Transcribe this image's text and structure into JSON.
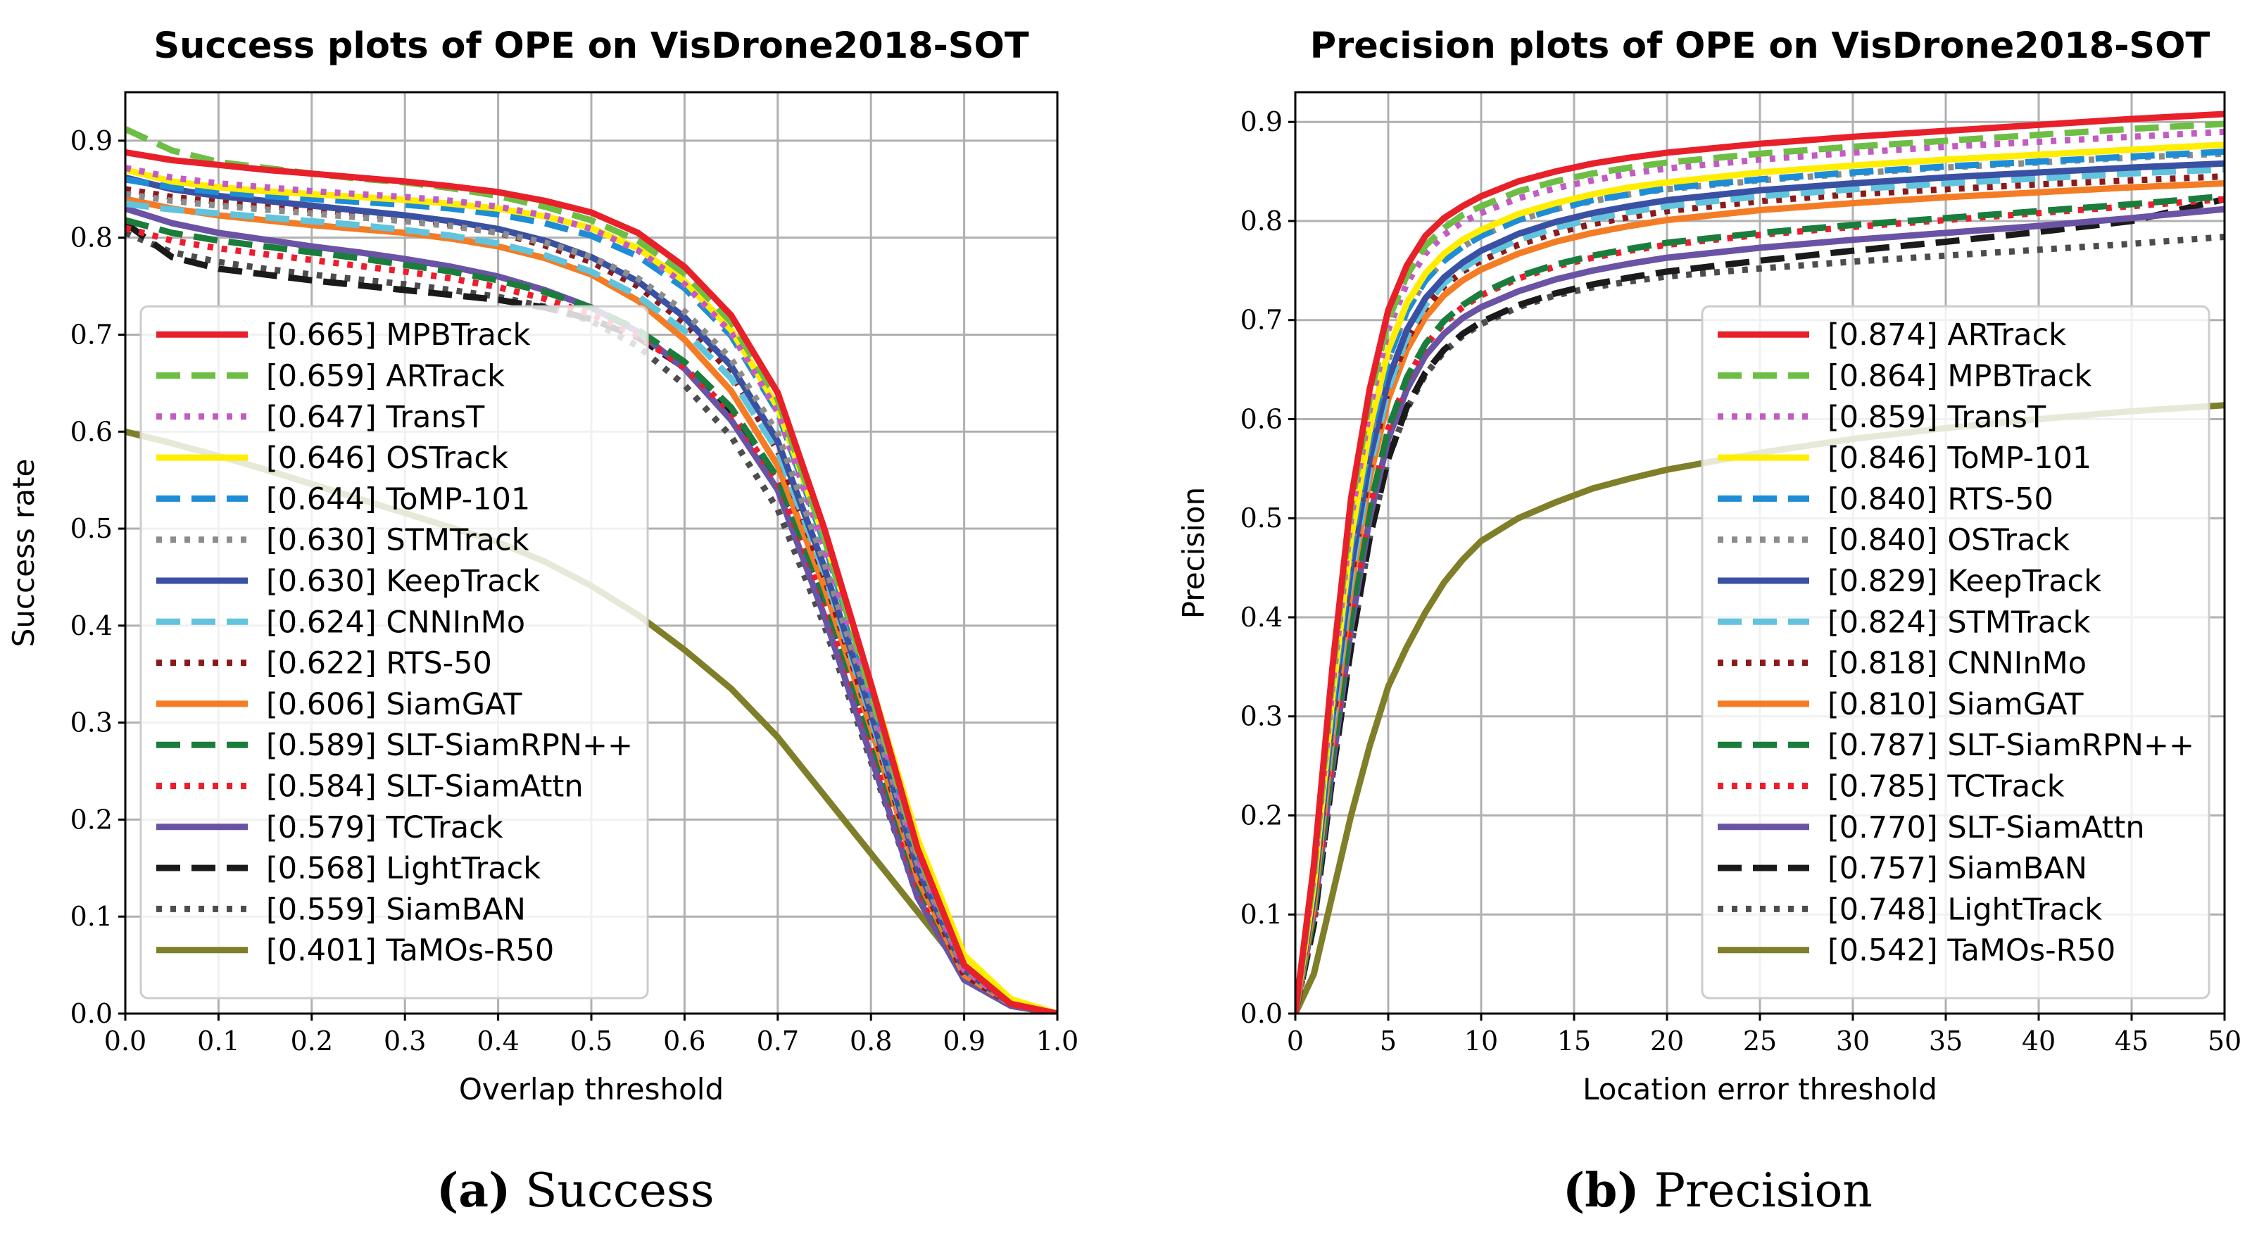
{
  "captions": [
    {
      "tag": "(a)",
      "text": "Success"
    },
    {
      "tag": "(b)",
      "text": "Precision"
    }
  ],
  "chart_data": [
    {
      "type": "line",
      "title": "Success plots of OPE on VisDrone2018-SOT",
      "xlabel": "Overlap threshold",
      "ylabel": "Success rate",
      "xlim": [
        0,
        1
      ],
      "ylim": [
        0,
        0.95
      ],
      "xticks": [
        "0.0",
        "0.1",
        "0.2",
        "0.3",
        "0.4",
        "0.5",
        "0.6",
        "0.7",
        "0.8",
        "0.9",
        "1.0"
      ],
      "yticks": [
        "0.0",
        "0.1",
        "0.2",
        "0.3",
        "0.4",
        "0.5",
        "0.6",
        "0.7",
        "0.8",
        "0.9"
      ],
      "grid": true,
      "legend_position": "bottom-left",
      "x": [
        0,
        0.05,
        0.1,
        0.15,
        0.2,
        0.25,
        0.3,
        0.35,
        0.4,
        0.45,
        0.5,
        0.55,
        0.6,
        0.65,
        0.7,
        0.75,
        0.8,
        0.85,
        0.9,
        0.95,
        1.0
      ],
      "series": [
        {
          "name": "[0.665] MPBTrack",
          "color": "#e8202a",
          "dash": "solid",
          "values": [
            0.888,
            0.88,
            0.875,
            0.87,
            0.866,
            0.862,
            0.858,
            0.853,
            0.847,
            0.838,
            0.826,
            0.805,
            0.77,
            0.72,
            0.64,
            0.5,
            0.34,
            0.17,
            0.05,
            0.01,
            0
          ]
        },
        {
          "name": "[0.659] ARTrack",
          "color": "#6dbe45",
          "dash": "dash",
          "values": [
            0.912,
            0.89,
            0.878,
            0.872,
            0.866,
            0.861,
            0.857,
            0.851,
            0.843,
            0.832,
            0.818,
            0.797,
            0.763,
            0.713,
            0.633,
            0.49,
            0.33,
            0.165,
            0.05,
            0.01,
            0
          ]
        },
        {
          "name": "[0.647] TransT",
          "color": "#c25cc2",
          "dash": "dot",
          "values": [
            0.872,
            0.862,
            0.856,
            0.852,
            0.848,
            0.845,
            0.842,
            0.838,
            0.832,
            0.823,
            0.809,
            0.787,
            0.752,
            0.702,
            0.62,
            0.48,
            0.325,
            0.16,
            0.045,
            0.01,
            0
          ]
        },
        {
          "name": "[0.646] OSTrack",
          "color": "#ffee00",
          "dash": "solid",
          "values": [
            0.87,
            0.858,
            0.852,
            0.848,
            0.845,
            0.842,
            0.839,
            0.835,
            0.83,
            0.822,
            0.81,
            0.789,
            0.755,
            0.705,
            0.625,
            0.49,
            0.34,
            0.18,
            0.06,
            0.015,
            0
          ]
        },
        {
          "name": "[0.644] ToMP-101",
          "color": "#1f8dd6",
          "dash": "dash",
          "values": [
            0.86,
            0.852,
            0.847,
            0.843,
            0.84,
            0.837,
            0.834,
            0.83,
            0.824,
            0.815,
            0.802,
            0.781,
            0.748,
            0.699,
            0.62,
            0.485,
            0.33,
            0.165,
            0.05,
            0.01,
            0
          ]
        },
        {
          "name": "[0.630] STMTrack",
          "color": "#8c8c8c",
          "dash": "dot",
          "values": [
            0.845,
            0.838,
            0.833,
            0.829,
            0.825,
            0.821,
            0.817,
            0.812,
            0.805,
            0.795,
            0.78,
            0.758,
            0.724,
            0.675,
            0.598,
            0.465,
            0.315,
            0.155,
            0.045,
            0.01,
            0
          ]
        },
        {
          "name": "[0.630] KeepTrack",
          "color": "#3a51a3",
          "dash": "solid",
          "values": [
            0.862,
            0.85,
            0.843,
            0.838,
            0.833,
            0.828,
            0.823,
            0.817,
            0.809,
            0.797,
            0.78,
            0.755,
            0.718,
            0.668,
            0.59,
            0.46,
            0.31,
            0.15,
            0.045,
            0.01,
            0
          ]
        },
        {
          "name": "[0.624] CNNInMo",
          "color": "#61c3dc",
          "dash": "dash",
          "values": [
            0.835,
            0.829,
            0.825,
            0.821,
            0.817,
            0.813,
            0.808,
            0.802,
            0.794,
            0.782,
            0.765,
            0.74,
            0.704,
            0.655,
            0.58,
            0.455,
            0.305,
            0.15,
            0.045,
            0.01,
            0
          ]
        },
        {
          "name": "[0.622] RTS-50",
          "color": "#8b1a1a",
          "dash": "dot",
          "values": [
            0.85,
            0.842,
            0.837,
            0.833,
            0.829,
            0.825,
            0.82,
            0.814,
            0.805,
            0.792,
            0.775,
            0.75,
            0.712,
            0.66,
            0.58,
            0.45,
            0.3,
            0.145,
            0.04,
            0.01,
            0
          ]
        },
        {
          "name": "[0.606] SiamGAT",
          "color": "#f47c25",
          "dash": "solid",
          "values": [
            0.84,
            0.83,
            0.823,
            0.818,
            0.813,
            0.809,
            0.805,
            0.799,
            0.791,
            0.779,
            0.762,
            0.735,
            0.695,
            0.642,
            0.565,
            0.44,
            0.295,
            0.14,
            0.04,
            0.01,
            0
          ]
        },
        {
          "name": "[0.589] SLT-SiamRPN++",
          "color": "#1a7d3c",
          "dash": "dash",
          "values": [
            0.818,
            0.805,
            0.797,
            0.791,
            0.785,
            0.779,
            0.772,
            0.765,
            0.756,
            0.744,
            0.728,
            0.705,
            0.672,
            0.625,
            0.552,
            0.43,
            0.285,
            0.135,
            0.04,
            0.01,
            0
          ]
        },
        {
          "name": "[0.584] SLT-SiamAttn",
          "color": "#ee1c2e",
          "dash": "dot",
          "values": [
            0.81,
            0.797,
            0.789,
            0.783,
            0.777,
            0.771,
            0.765,
            0.758,
            0.749,
            0.737,
            0.721,
            0.699,
            0.666,
            0.62,
            0.548,
            0.425,
            0.28,
            0.13,
            0.04,
            0.01,
            0
          ]
        },
        {
          "name": "[0.579] TCTrack",
          "color": "#6a53a4",
          "dash": "solid",
          "values": [
            0.83,
            0.815,
            0.805,
            0.798,
            0.791,
            0.785,
            0.778,
            0.77,
            0.76,
            0.746,
            0.728,
            0.703,
            0.665,
            0.612,
            0.54,
            0.41,
            0.265,
            0.12,
            0.035,
            0.008,
            0
          ]
        },
        {
          "name": "[0.568] LightTrack",
          "color": "#1a1a1a",
          "dash": "dash",
          "values": [
            0.815,
            0.78,
            0.768,
            0.762,
            0.756,
            0.751,
            0.746,
            0.741,
            0.736,
            0.728,
            0.716,
            0.697,
            0.666,
            0.62,
            0.548,
            0.425,
            0.28,
            0.13,
            0.04,
            0.01,
            0
          ]
        },
        {
          "name": "[0.559] SiamBAN",
          "color": "#4d4d4d",
          "dash": "dot",
          "values": [
            0.805,
            0.785,
            0.775,
            0.768,
            0.762,
            0.757,
            0.752,
            0.746,
            0.739,
            0.729,
            0.714,
            0.688,
            0.648,
            0.595,
            0.52,
            0.4,
            0.26,
            0.12,
            0.035,
            0.008,
            0
          ]
        },
        {
          "name": "[0.401] TaMOs-R50",
          "color": "#7f7f2a",
          "dash": "solid",
          "values": [
            0.6,
            0.588,
            0.575,
            0.561,
            0.546,
            0.531,
            0.516,
            0.501,
            0.486,
            0.466,
            0.441,
            0.411,
            0.375,
            0.335,
            0.285,
            0.225,
            0.165,
            0.105,
            0.045,
            0.01,
            0
          ]
        }
      ]
    },
    {
      "type": "line",
      "title": "Precision plots of OPE on VisDrone2018-SOT",
      "xlabel": "Location error threshold",
      "ylabel": "Precision",
      "xlim": [
        0,
        50
      ],
      "ylim": [
        0,
        0.93
      ],
      "xticks": [
        "0",
        "5",
        "10",
        "15",
        "20",
        "25",
        "30",
        "35",
        "40",
        "45",
        "50"
      ],
      "yticks": [
        "0.0",
        "0.1",
        "0.2",
        "0.3",
        "0.4",
        "0.5",
        "0.6",
        "0.7",
        "0.8",
        "0.9"
      ],
      "grid": true,
      "legend_position": "bottom-right",
      "x": [
        0,
        1,
        2,
        3,
        4,
        5,
        6,
        7,
        8,
        9,
        10,
        12,
        14,
        16,
        18,
        20,
        25,
        30,
        35,
        40,
        45,
        50
      ],
      "series": [
        {
          "name": "[0.874] ARTrack",
          "color": "#e8202a",
          "dash": "solid",
          "values": [
            0,
            0.15,
            0.35,
            0.52,
            0.63,
            0.71,
            0.755,
            0.785,
            0.803,
            0.815,
            0.825,
            0.84,
            0.85,
            0.858,
            0.864,
            0.869,
            0.878,
            0.885,
            0.891,
            0.897,
            0.903,
            0.908
          ]
        },
        {
          "name": "[0.864] MPBTrack",
          "color": "#6dbe45",
          "dash": "dash",
          "values": [
            0,
            0.14,
            0.34,
            0.51,
            0.62,
            0.7,
            0.745,
            0.775,
            0.793,
            0.806,
            0.815,
            0.83,
            0.84,
            0.848,
            0.854,
            0.859,
            0.868,
            0.875,
            0.881,
            0.887,
            0.893,
            0.898
          ]
        },
        {
          "name": "[0.859] TransT",
          "color": "#c25cc2",
          "dash": "dot",
          "values": [
            0,
            0.14,
            0.33,
            0.5,
            0.61,
            0.69,
            0.737,
            0.767,
            0.786,
            0.799,
            0.808,
            0.823,
            0.833,
            0.841,
            0.848,
            0.853,
            0.862,
            0.869,
            0.875,
            0.88,
            0.885,
            0.89
          ]
        },
        {
          "name": "[0.846] ToMP-101",
          "color": "#ffee00",
          "dash": "solid",
          "values": [
            0,
            0.13,
            0.32,
            0.48,
            0.59,
            0.67,
            0.717,
            0.747,
            0.767,
            0.781,
            0.791,
            0.807,
            0.818,
            0.827,
            0.834,
            0.839,
            0.849,
            0.856,
            0.862,
            0.867,
            0.872,
            0.877
          ]
        },
        {
          "name": "[0.840] RTS-50",
          "color": "#1f8dd6",
          "dash": "dash",
          "values": [
            0,
            0.13,
            0.31,
            0.47,
            0.58,
            0.66,
            0.709,
            0.74,
            0.76,
            0.774,
            0.785,
            0.801,
            0.812,
            0.821,
            0.827,
            0.833,
            0.842,
            0.849,
            0.855,
            0.86,
            0.865,
            0.87
          ]
        },
        {
          "name": "[0.840] OSTrack",
          "color": "#8c8c8c",
          "dash": "dot",
          "values": [
            0,
            0.13,
            0.31,
            0.47,
            0.58,
            0.66,
            0.709,
            0.74,
            0.76,
            0.774,
            0.785,
            0.801,
            0.812,
            0.82,
            0.827,
            0.832,
            0.841,
            0.848,
            0.854,
            0.859,
            0.864,
            0.868
          ]
        },
        {
          "name": "[0.829] KeepTrack",
          "color": "#3a51a3",
          "dash": "solid",
          "values": [
            0,
            0.12,
            0.3,
            0.45,
            0.56,
            0.64,
            0.69,
            0.722,
            0.743,
            0.758,
            0.77,
            0.787,
            0.799,
            0.808,
            0.815,
            0.821,
            0.831,
            0.838,
            0.844,
            0.849,
            0.854,
            0.858
          ]
        },
        {
          "name": "[0.824] STMTrack",
          "color": "#61c3dc",
          "dash": "dash",
          "values": [
            0,
            0.12,
            0.29,
            0.44,
            0.55,
            0.63,
            0.683,
            0.715,
            0.737,
            0.752,
            0.764,
            0.781,
            0.793,
            0.802,
            0.809,
            0.815,
            0.825,
            0.832,
            0.838,
            0.843,
            0.848,
            0.852
          ]
        },
        {
          "name": "[0.818] CNNInMo",
          "color": "#8b1a1a",
          "dash": "dot",
          "values": [
            0,
            0.12,
            0.29,
            0.44,
            0.55,
            0.63,
            0.68,
            0.712,
            0.734,
            0.749,
            0.76,
            0.776,
            0.788,
            0.797,
            0.804,
            0.81,
            0.82,
            0.827,
            0.832,
            0.837,
            0.841,
            0.845
          ]
        },
        {
          "name": "[0.810] SiamGAT",
          "color": "#f47c25",
          "dash": "solid",
          "values": [
            0,
            0.11,
            0.28,
            0.43,
            0.54,
            0.62,
            0.67,
            0.703,
            0.725,
            0.74,
            0.751,
            0.767,
            0.779,
            0.788,
            0.795,
            0.801,
            0.811,
            0.818,
            0.824,
            0.829,
            0.834,
            0.838
          ]
        },
        {
          "name": "[0.787] SLT-SiamRPN++",
          "color": "#1a7d3c",
          "dash": "dash",
          "values": [
            0,
            0.1,
            0.26,
            0.4,
            0.51,
            0.59,
            0.642,
            0.676,
            0.699,
            0.715,
            0.727,
            0.744,
            0.756,
            0.765,
            0.772,
            0.778,
            0.788,
            0.796,
            0.803,
            0.81,
            0.817,
            0.825
          ]
        },
        {
          "name": "[0.785] TCTrack",
          "color": "#ee1c2e",
          "dash": "dot",
          "values": [
            0,
            0.1,
            0.26,
            0.4,
            0.51,
            0.59,
            0.64,
            0.674,
            0.697,
            0.713,
            0.725,
            0.742,
            0.754,
            0.763,
            0.77,
            0.776,
            0.786,
            0.794,
            0.801,
            0.808,
            0.815,
            0.822
          ]
        },
        {
          "name": "[0.770] SLT-SiamAttn",
          "color": "#6a53a4",
          "dash": "solid",
          "values": [
            0,
            0.1,
            0.25,
            0.39,
            0.5,
            0.58,
            0.63,
            0.664,
            0.686,
            0.702,
            0.713,
            0.729,
            0.741,
            0.75,
            0.757,
            0.763,
            0.773,
            0.781,
            0.788,
            0.795,
            0.803,
            0.812
          ]
        },
        {
          "name": "[0.757] SiamBAN",
          "color": "#1a1a1a",
          "dash": "dash",
          "values": [
            0,
            0.09,
            0.24,
            0.37,
            0.48,
            0.56,
            0.612,
            0.647,
            0.67,
            0.686,
            0.698,
            0.715,
            0.727,
            0.736,
            0.743,
            0.749,
            0.76,
            0.77,
            0.779,
            0.789,
            0.8,
            0.822
          ]
        },
        {
          "name": "[0.748] LightTrack",
          "color": "#4d4d4d",
          "dash": "dot",
          "values": [
            0,
            0.09,
            0.24,
            0.37,
            0.48,
            0.56,
            0.61,
            0.645,
            0.668,
            0.684,
            0.696,
            0.713,
            0.725,
            0.733,
            0.739,
            0.744,
            0.752,
            0.759,
            0.765,
            0.771,
            0.777,
            0.784
          ]
        },
        {
          "name": "[0.542] TaMOs-R50",
          "color": "#7f7f2a",
          "dash": "solid",
          "values": [
            0,
            0.04,
            0.12,
            0.2,
            0.27,
            0.33,
            0.37,
            0.405,
            0.435,
            0.458,
            0.477,
            0.5,
            0.516,
            0.53,
            0.54,
            0.549,
            0.566,
            0.58,
            0.591,
            0.6,
            0.608,
            0.614
          ]
        }
      ]
    }
  ]
}
